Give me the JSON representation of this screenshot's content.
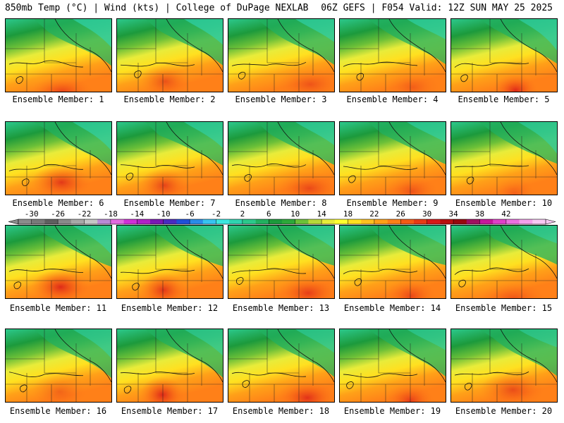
{
  "header": {
    "left_title": "850mb Temp (°C) | Wind (kts) | College of DuPage NEXLAB",
    "right_title": "06Z GEFS | F054 Valid: 12Z SUN MAY 25 2025"
  },
  "panels": [
    {
      "label": "Ensemble Member: 1"
    },
    {
      "label": "Ensemble Member: 2"
    },
    {
      "label": "Ensemble Member: 3"
    },
    {
      "label": "Ensemble Member: 4"
    },
    {
      "label": "Ensemble Member: 5"
    },
    {
      "label": "Ensemble Member: 6"
    },
    {
      "label": "Ensemble Member: 7"
    },
    {
      "label": "Ensemble Member: 8"
    },
    {
      "label": "Ensemble Member: 9"
    },
    {
      "label": "Ensemble Member: 10"
    },
    {
      "label": "Ensemble Member: 11"
    },
    {
      "label": "Ensemble Member: 12"
    },
    {
      "label": "Ensemble Member: 13"
    },
    {
      "label": "Ensemble Member: 14"
    },
    {
      "label": "Ensemble Member: 15"
    },
    {
      "label": "Ensemble Member: 16"
    },
    {
      "label": "Ensemble Member: 17"
    },
    {
      "label": "Ensemble Member: 18"
    },
    {
      "label": "Ensemble Member: 19"
    },
    {
      "label": "Ensemble Member: 20"
    }
  ],
  "colorbar": {
    "tick_labels": [
      "-30",
      "-26",
      "-22",
      "-18",
      "-14",
      "-10",
      "-6",
      "-2",
      "2",
      "6",
      "10",
      "14",
      "18",
      "22",
      "26",
      "30",
      "34",
      "38",
      "42"
    ],
    "colors": [
      "#8c8c8c",
      "#7a7a7a",
      "#5f5f5f",
      "#8a8a8a",
      "#a8a8a8",
      "#c6c6c6",
      "#ba8ad6",
      "#e06be0",
      "#d030d8",
      "#b020c8",
      "#7a18b4",
      "#4a2ac0",
      "#2050d8",
      "#2a8ce8",
      "#38c4f0",
      "#3ce6e0",
      "#30d4b0",
      "#2cc88c",
      "#22b060",
      "#1c9a3c",
      "#2ca83a",
      "#6cc038",
      "#b8d83a",
      "#e8ec3a",
      "#ffff30",
      "#ffe020",
      "#ffc020",
      "#ffa018",
      "#ff8018",
      "#f45a16",
      "#e83a16",
      "#d81818",
      "#b81010",
      "#98080e",
      "#a01060",
      "#c8189c",
      "#e040c8",
      "#ec70e0",
      "#f4a0ec",
      "#f8c8f4"
    ]
  }
}
